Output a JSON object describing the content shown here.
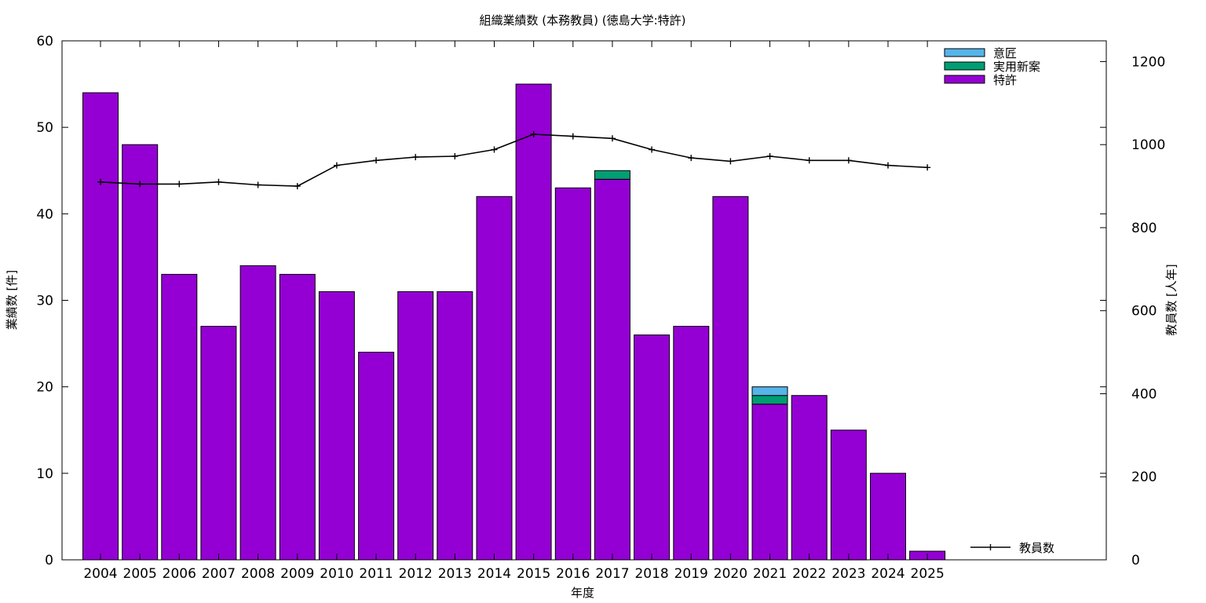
{
  "chart_data": {
    "type": "bar",
    "stacked": true,
    "title": "組織業績数 (本務教員) (徳島大学:特許)",
    "xlabel": "年度",
    "ylabel": "業績数 [件]",
    "y2label": "教員数 [人年]",
    "ylim": [
      0,
      60
    ],
    "y2lim": [
      0,
      1250
    ],
    "yticks": [
      0,
      10,
      20,
      30,
      40,
      50,
      60
    ],
    "y2ticks": [
      0,
      200,
      400,
      600,
      800,
      1000,
      1200
    ],
    "grid": false,
    "legend_position": "top-right",
    "categories": [
      "2004",
      "2005",
      "2006",
      "2007",
      "2008",
      "2009",
      "2010",
      "2011",
      "2012",
      "2013",
      "2014",
      "2015",
      "2016",
      "2017",
      "2018",
      "2019",
      "2020",
      "2021",
      "2022",
      "2023",
      "2024",
      "2025"
    ],
    "series": [
      {
        "name": "特許",
        "color": "#9400d3",
        "values": [
          54,
          48,
          33,
          27,
          34,
          33,
          31,
          24,
          31,
          31,
          42,
          55,
          43,
          44,
          26,
          27,
          42,
          18,
          19,
          15,
          10,
          1
        ]
      },
      {
        "name": "実用新案",
        "color": "#009e73",
        "values": [
          0,
          0,
          0,
          0,
          0,
          0,
          0,
          0,
          0,
          0,
          0,
          0,
          0,
          1,
          0,
          0,
          0,
          1,
          0,
          0,
          0,
          0
        ]
      },
      {
        "name": "意匠",
        "color": "#56b4e9",
        "values": [
          0,
          0,
          0,
          0,
          0,
          0,
          0,
          0,
          0,
          0,
          0,
          0,
          0,
          0,
          0,
          0,
          0,
          1,
          0,
          0,
          0,
          0
        ]
      }
    ],
    "line_series": {
      "name": "教員数",
      "axis": "right",
      "color": "#000000",
      "values": [
        910,
        905,
        905,
        910,
        903,
        900,
        950,
        962,
        970,
        972,
        988,
        1025,
        1020,
        1015,
        988,
        968,
        960,
        972,
        962,
        962,
        950,
        945
      ]
    }
  }
}
